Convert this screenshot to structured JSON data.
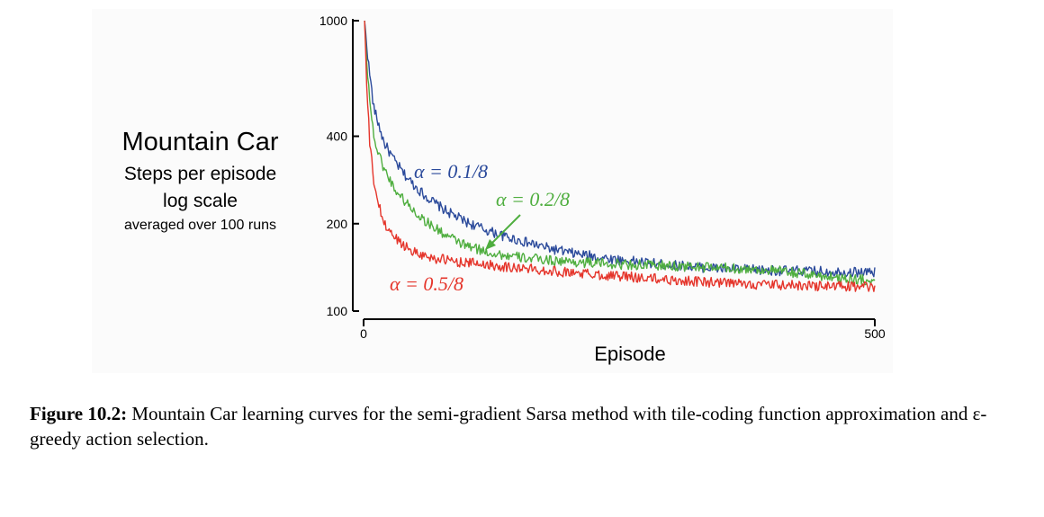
{
  "side_title": {
    "main": "Mountain Car",
    "line1": "Steps per episode",
    "line2": "log scale",
    "line3": "averaged over 100 runs"
  },
  "caption": {
    "label": "Figure 10.2:",
    "text": "Mountain Car learning curves for the semi-gradient Sarsa method with tile-coding function approximation and ε-greedy action selection."
  },
  "chart_data": {
    "type": "line",
    "title": "",
    "xlabel": "Episode",
    "ylabel": "",
    "xlim": [
      0,
      500
    ],
    "ylim": [
      100,
      1000
    ],
    "yscale": "log",
    "x_ticks": [
      "0",
      "500"
    ],
    "y_ticks": [
      "100",
      "200",
      "400",
      "1000"
    ],
    "y_tick_values": [
      100,
      200,
      400,
      1000
    ],
    "grid": false,
    "legend": "inline labels",
    "series": [
      {
        "name": "α = 0.1/8",
        "color": "#2b4a9b",
        "x": [
          1,
          5,
          10,
          20,
          30,
          40,
          50,
          60,
          70,
          80,
          90,
          100,
          120,
          140,
          160,
          180,
          200,
          250,
          300,
          350,
          400,
          450,
          500
        ],
        "y": [
          1000,
          700,
          500,
          380,
          330,
          295,
          270,
          250,
          235,
          222,
          212,
          203,
          190,
          180,
          172,
          165,
          159,
          150,
          144,
          140,
          138,
          137,
          136
        ]
      },
      {
        "name": "α = 0.2/8",
        "color": "#4fae3f",
        "x": [
          1,
          4,
          8,
          12,
          20,
          30,
          40,
          50,
          60,
          70,
          80,
          90,
          100,
          120,
          140,
          160,
          180,
          200,
          250,
          300,
          350,
          400,
          450,
          500
        ],
        "y": [
          1000,
          650,
          450,
          370,
          310,
          265,
          240,
          220,
          205,
          193,
          183,
          175,
          168,
          160,
          155,
          152,
          150,
          148,
          145,
          143,
          141,
          138,
          132,
          127
        ]
      },
      {
        "name": "α = 0.5/8",
        "color": "#e5352b",
        "x": [
          1,
          3,
          6,
          10,
          15,
          20,
          30,
          40,
          50,
          60,
          70,
          80,
          90,
          100,
          120,
          140,
          160,
          200,
          250,
          300,
          350,
          400,
          450,
          500
        ],
        "y": [
          1000,
          600,
          380,
          280,
          230,
          200,
          180,
          168,
          160,
          155,
          152,
          150,
          148,
          147,
          145,
          142,
          140,
          136,
          132,
          128,
          125,
          123,
          122,
          121
        ]
      }
    ],
    "annotations": [
      {
        "text": "α = 0.1/8",
        "color": "#2b4a9b"
      },
      {
        "text": "α = 0.2/8",
        "color": "#4fae3f"
      },
      {
        "text": "α = 0.5/8",
        "color": "#e5352b"
      }
    ]
  }
}
